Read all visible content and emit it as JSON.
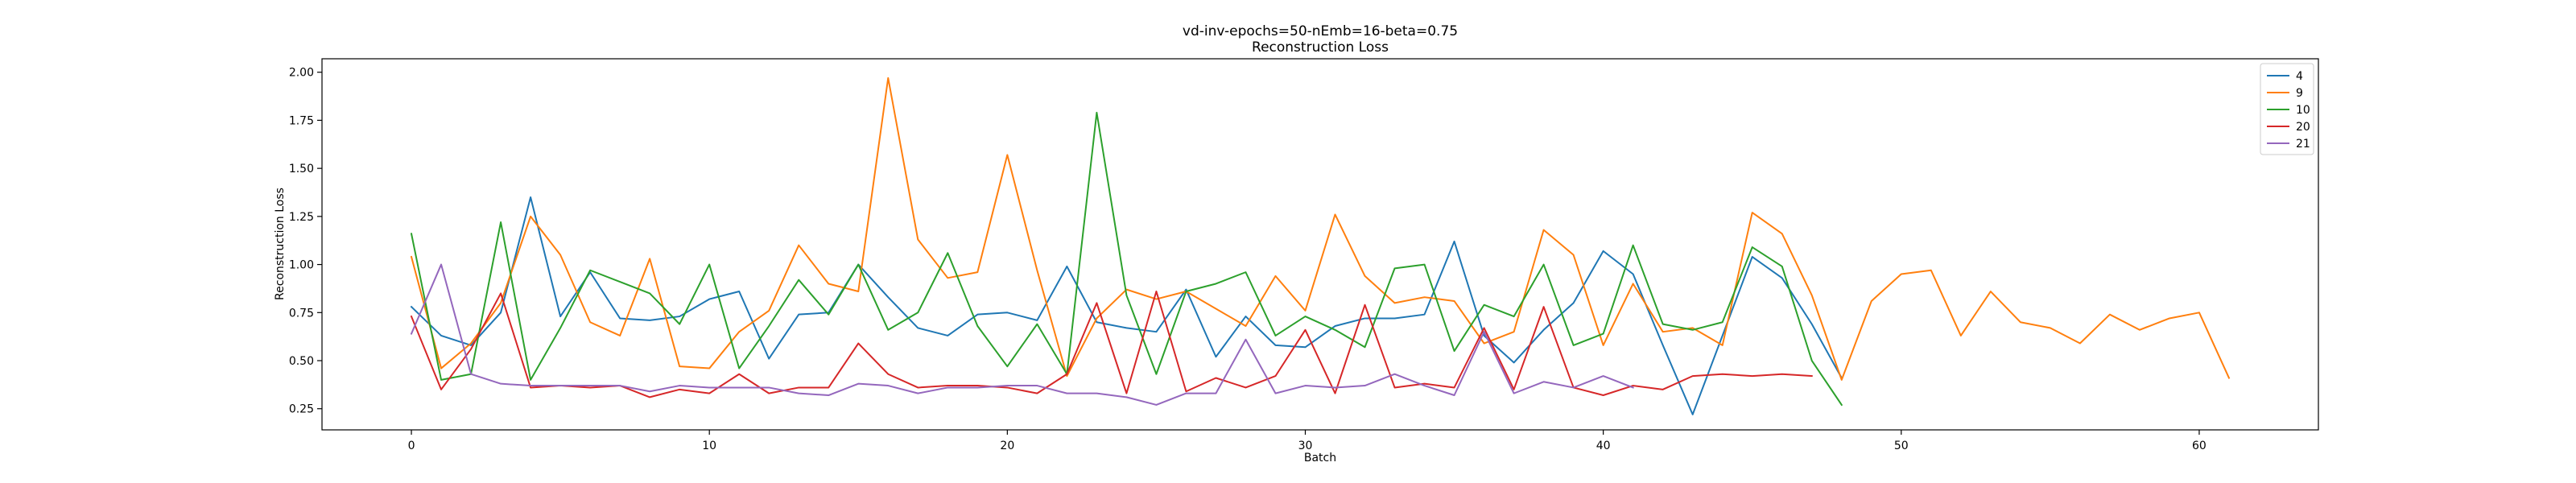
{
  "chart_data": {
    "type": "line",
    "title": "vd-inv-epochs=50-nEmb=16-beta=0.75",
    "subtitle": "Reconstruction Loss",
    "xlabel": "Batch",
    "ylabel": "Reconstruction Loss",
    "xlim": [
      -3,
      64
    ],
    "ylim": [
      0.14,
      2.07
    ],
    "xticks": [
      0,
      10,
      20,
      30,
      40,
      50,
      60
    ],
    "yticks": [
      0.25,
      0.5,
      0.75,
      1.0,
      1.25,
      1.5,
      1.75,
      2.0
    ],
    "ytick_labels": [
      "0.25",
      "0.50",
      "0.75",
      "1.00",
      "1.25",
      "1.50",
      "1.75",
      "2.00"
    ],
    "grid": false,
    "legend_position": "top-right",
    "series": [
      {
        "name": "4",
        "color": "#1f77b4",
        "values": [
          0.78,
          0.63,
          0.58,
          0.75,
          1.35,
          0.73,
          0.96,
          0.72,
          0.71,
          0.73,
          0.82,
          0.86,
          0.51,
          0.74,
          0.75,
          1.0,
          0.83,
          0.67,
          0.63,
          0.74,
          0.75,
          0.71,
          0.99,
          0.7,
          0.67,
          0.65,
          0.87,
          0.52,
          0.73,
          0.58,
          0.57,
          0.68,
          0.72,
          0.72,
          0.74,
          1.12,
          0.63,
          0.49,
          0.66,
          0.8,
          1.07,
          0.95,
          0.58,
          0.22,
          0.63,
          1.04,
          0.93,
          0.69,
          0.41
        ]
      },
      {
        "name": "9",
        "color": "#ff7f0e",
        "values": [
          1.04,
          0.46,
          0.59,
          0.8,
          1.25,
          1.05,
          0.7,
          0.63,
          1.03,
          0.47,
          0.46,
          0.65,
          0.76,
          1.1,
          0.9,
          0.86,
          1.97,
          1.13,
          0.93,
          0.96,
          1.57,
          0.97,
          0.42,
          0.72,
          0.87,
          0.82,
          0.86,
          0.77,
          0.68,
          0.94,
          0.76,
          1.26,
          0.94,
          0.8,
          0.83,
          0.81,
          0.59,
          0.65,
          1.18,
          1.05,
          0.58,
          0.9,
          0.65,
          0.67,
          0.58,
          1.27,
          1.16,
          0.84,
          0.4,
          0.81,
          0.95,
          0.97,
          0.63,
          0.86,
          0.7,
          0.67,
          0.59,
          0.74,
          0.66,
          0.72,
          0.75,
          0.41
        ]
      },
      {
        "name": "10",
        "color": "#2ca02c",
        "values": [
          1.16,
          0.4,
          0.43,
          1.22,
          0.4,
          0.67,
          0.97,
          0.91,
          0.85,
          0.69,
          1.0,
          0.46,
          0.68,
          0.92,
          0.74,
          1.0,
          0.66,
          0.75,
          1.06,
          0.68,
          0.47,
          0.69,
          0.43,
          1.79,
          0.84,
          0.43,
          0.86,
          0.9,
          0.96,
          0.63,
          0.73,
          0.66,
          0.57,
          0.98,
          1.0,
          0.55,
          0.79,
          0.73,
          1.0,
          0.58,
          0.64,
          1.1,
          0.69,
          0.66,
          0.7,
          1.09,
          0.99,
          0.5,
          0.27
        ]
      },
      {
        "name": "20",
        "color": "#d62728",
        "values": [
          0.73,
          0.35,
          0.56,
          0.85,
          0.36,
          0.37,
          0.36,
          0.37,
          0.31,
          0.35,
          0.33,
          0.43,
          0.33,
          0.36,
          0.36,
          0.59,
          0.43,
          0.36,
          0.37,
          0.37,
          0.36,
          0.33,
          0.43,
          0.8,
          0.33,
          0.86,
          0.34,
          0.41,
          0.36,
          0.42,
          0.66,
          0.33,
          0.79,
          0.36,
          0.38,
          0.36,
          0.67,
          0.35,
          0.78,
          0.36,
          0.32,
          0.37,
          0.35,
          0.42,
          0.43,
          0.42,
          0.43,
          0.42
        ]
      },
      {
        "name": "21",
        "color": "#9467bd",
        "values": [
          0.64,
          1.0,
          0.43,
          0.38,
          0.37,
          0.37,
          0.37,
          0.37,
          0.34,
          0.37,
          0.36,
          0.36,
          0.36,
          0.33,
          0.32,
          0.38,
          0.37,
          0.33,
          0.36,
          0.36,
          0.37,
          0.37,
          0.33,
          0.33,
          0.31,
          0.27,
          0.33,
          0.33,
          0.61,
          0.33,
          0.37,
          0.36,
          0.37,
          0.43,
          0.37,
          0.32,
          0.65,
          0.33,
          0.39,
          0.36,
          0.42,
          0.36
        ]
      }
    ]
  }
}
